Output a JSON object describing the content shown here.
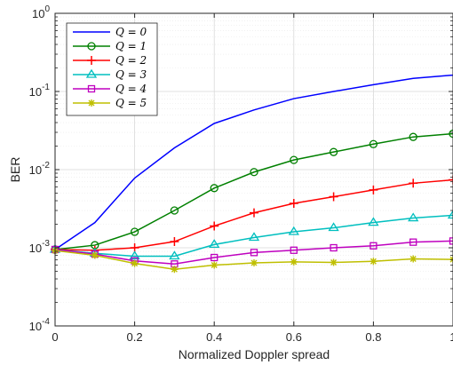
{
  "chart_data": {
    "type": "line",
    "title": "",
    "xlabel": "Normalized Doppler spread",
    "ylabel": "BER",
    "xlim": [
      0,
      1
    ],
    "ylim": [
      0.0001,
      1
    ],
    "yscale": "log",
    "grid": true,
    "legend_position": "top-left",
    "x": [
      0,
      0.1,
      0.2,
      0.3,
      0.4,
      0.5,
      0.6,
      0.7,
      0.8,
      0.9,
      1.0
    ],
    "x_ticks": [
      {
        "value": 0,
        "label": "0"
      },
      {
        "value": 0.2,
        "label": "0.2"
      },
      {
        "value": 0.4,
        "label": "0.4"
      },
      {
        "value": 0.6,
        "label": "0.6"
      },
      {
        "value": 0.8,
        "label": "0.8"
      },
      {
        "value": 1,
        "label": "1"
      }
    ],
    "y_ticks": [
      {
        "value": 0.0001,
        "base": "10",
        "exp": "-4"
      },
      {
        "value": 0.001,
        "base": "10",
        "exp": "-3"
      },
      {
        "value": 0.01,
        "base": "10",
        "exp": "-2"
      },
      {
        "value": 0.1,
        "base": "10",
        "exp": "-1"
      },
      {
        "value": 1,
        "base": "10",
        "exp": "0"
      }
    ],
    "series": [
      {
        "name": "Q = 0",
        "color": "#0000ff",
        "marker": "none",
        "values": [
          0.00095,
          0.0021,
          0.0078,
          0.019,
          0.039,
          0.058,
          0.081,
          0.1,
          0.122,
          0.147,
          0.162
        ]
      },
      {
        "name": "Q = 1",
        "color": "#008000",
        "marker": "circle",
        "values": [
          0.00095,
          0.00108,
          0.0016,
          0.003,
          0.0058,
          0.0093,
          0.0133,
          0.0168,
          0.0212,
          0.0262,
          0.0288
        ]
      },
      {
        "name": "Q = 2",
        "color": "#ff0000",
        "marker": "plus",
        "values": [
          0.00095,
          0.00093,
          0.001,
          0.0012,
          0.0019,
          0.0028,
          0.0037,
          0.0045,
          0.0055,
          0.0067,
          0.0074
        ]
      },
      {
        "name": "Q = 3",
        "color": "#00bfbf",
        "marker": "triangle",
        "values": [
          0.00095,
          0.00085,
          0.00078,
          0.00078,
          0.0011,
          0.00135,
          0.0016,
          0.0018,
          0.0021,
          0.0024,
          0.0026
        ]
      },
      {
        "name": "Q = 4",
        "color": "#bf00bf",
        "marker": "square",
        "values": [
          0.00095,
          0.00083,
          0.00068,
          0.00062,
          0.00075,
          0.00087,
          0.00093,
          0.001,
          0.00106,
          0.00118,
          0.00122
        ]
      },
      {
        "name": "Q = 5",
        "color": "#bfbf00",
        "marker": "asterisk",
        "values": [
          0.00092,
          0.0008,
          0.00063,
          0.00053,
          0.0006,
          0.00064,
          0.00066,
          0.00065,
          0.00067,
          0.00072,
          0.00071
        ]
      }
    ]
  }
}
